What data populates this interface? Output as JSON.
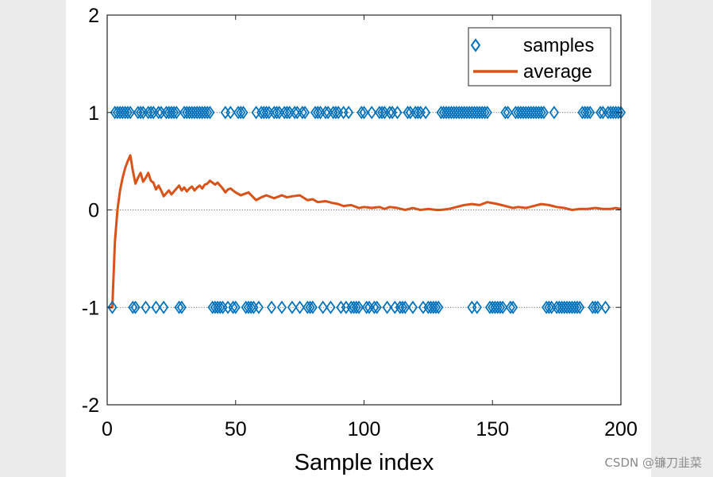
{
  "chart_data": {
    "type": "scatter",
    "title": "",
    "xlabel": "Sample index",
    "ylabel": "",
    "xlim": [
      0,
      200
    ],
    "ylim": [
      -2,
      2
    ],
    "xticks": [
      0,
      50,
      100,
      150,
      200
    ],
    "yticks": [
      -2,
      -1,
      0,
      1,
      2
    ],
    "reference_lines": [
      -1,
      0,
      1
    ],
    "legend_position": "top-right",
    "series": [
      {
        "name": "samples",
        "kind": "markers",
        "marker": "diamond-open",
        "color": "#0072bd",
        "x_plus1": [
          3,
          4,
          5,
          6,
          7,
          8,
          9,
          12,
          13,
          14,
          16,
          17,
          18,
          20,
          21,
          23,
          24,
          25,
          26,
          27,
          30,
          31,
          32,
          33,
          34,
          35,
          36,
          37,
          38,
          39,
          40,
          46,
          48,
          51,
          52,
          53,
          58,
          60,
          61,
          62,
          63,
          65,
          66,
          67,
          69,
          70,
          71,
          73,
          74,
          76,
          77,
          81,
          82,
          83,
          85,
          86,
          88,
          89,
          90,
          92,
          94,
          99,
          100,
          103,
          106,
          107,
          108,
          110,
          111,
          113,
          117,
          118,
          120,
          121,
          122,
          124,
          130,
          131,
          132,
          133,
          134,
          135,
          136,
          137,
          138,
          139,
          140,
          141,
          142,
          143,
          144,
          145,
          146,
          147,
          148,
          155,
          156,
          159,
          160,
          161,
          162,
          163,
          164,
          165,
          166,
          167,
          168,
          169,
          170,
          174,
          185,
          186,
          187,
          188,
          192,
          193,
          195,
          196,
          197,
          198,
          199,
          200
        ],
        "x_minus1": [
          2,
          10,
          11,
          15,
          19,
          22,
          28,
          29,
          41,
          42,
          43,
          44,
          45,
          47,
          49,
          50,
          54,
          55,
          56,
          57,
          59,
          64,
          68,
          72,
          75,
          78,
          79,
          80,
          84,
          87,
          91,
          93,
          95,
          96,
          97,
          98,
          101,
          102,
          104,
          105,
          109,
          112,
          114,
          115,
          116,
          119,
          123,
          125,
          126,
          127,
          128,
          129,
          142,
          144,
          149,
          150,
          151,
          152,
          153,
          154,
          157,
          158,
          171,
          172,
          173,
          175,
          176,
          177,
          178,
          179,
          180,
          181,
          182,
          183,
          184,
          189,
          190,
          191,
          194
        ]
      },
      {
        "name": "average",
        "kind": "line",
        "color": "#d95319",
        "x": [
          1,
          2,
          3,
          4,
          5,
          6,
          7,
          8,
          9,
          10,
          11,
          12,
          13,
          14,
          15,
          16,
          17,
          18,
          19,
          20,
          21,
          22,
          23,
          24,
          25,
          26,
          27,
          28,
          29,
          30,
          31,
          32,
          33,
          34,
          35,
          36,
          37,
          38,
          39,
          40,
          41,
          42,
          43,
          44,
          45,
          46,
          47,
          48,
          49,
          50,
          52,
          55,
          58,
          60,
          62,
          65,
          68,
          70,
          72,
          75,
          78,
          80,
          82,
          85,
          88,
          90,
          92,
          95,
          98,
          100,
          103,
          106,
          108,
          110,
          113,
          116,
          119,
          122,
          125,
          128,
          130,
          133,
          136,
          139,
          142,
          145,
          148,
          150,
          152,
          155,
          158,
          160,
          163,
          166,
          169,
          172,
          175,
          178,
          181,
          184,
          187,
          190,
          193,
          196,
          198,
          200
        ],
        "y": [
          -1,
          -1,
          -0.33,
          0.0,
          0.2,
          0.33,
          0.43,
          0.5,
          0.56,
          0.4,
          0.27,
          0.33,
          0.38,
          0.29,
          0.33,
          0.38,
          0.3,
          0.28,
          0.21,
          0.25,
          0.2,
          0.14,
          0.17,
          0.2,
          0.16,
          0.19,
          0.22,
          0.25,
          0.2,
          0.23,
          0.19,
          0.22,
          0.24,
          0.2,
          0.23,
          0.25,
          0.22,
          0.26,
          0.27,
          0.3,
          0.28,
          0.26,
          0.28,
          0.25,
          0.22,
          0.18,
          0.21,
          0.22,
          0.2,
          0.18,
          0.15,
          0.18,
          0.1,
          0.13,
          0.15,
          0.12,
          0.15,
          0.13,
          0.14,
          0.15,
          0.1,
          0.11,
          0.08,
          0.09,
          0.07,
          0.06,
          0.04,
          0.05,
          0.02,
          0.03,
          0.02,
          0.03,
          0.01,
          0.03,
          0.02,
          0.0,
          0.02,
          0.0,
          0.01,
          0.0,
          0.0,
          0.01,
          0.03,
          0.05,
          0.06,
          0.05,
          0.08,
          0.07,
          0.06,
          0.04,
          0.02,
          0.03,
          0.02,
          0.04,
          0.06,
          0.05,
          0.03,
          0.02,
          0.0,
          0.01,
          0.01,
          0.02,
          0.01,
          0.01,
          0.02,
          0.01
        ]
      }
    ]
  },
  "watermark": "CSDN @镰刀韭菜"
}
